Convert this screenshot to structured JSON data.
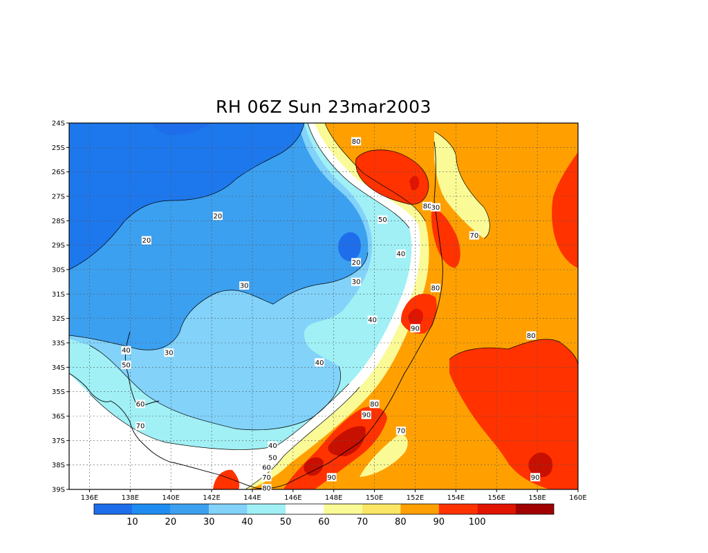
{
  "title": "RH 06Z Sun 23mar2003",
  "map": {
    "lat_labels": [
      "24S",
      "25S",
      "26S",
      "27S",
      "28S",
      "29S",
      "30S",
      "31S",
      "32S",
      "33S",
      "34S",
      "35S",
      "36S",
      "37S",
      "38S",
      "39S"
    ],
    "lon_labels": [
      "136E",
      "138E",
      "140E",
      "142E",
      "144E",
      "146E",
      "148E",
      "150E",
      "152E",
      "154E",
      "156E",
      "158E",
      "160E"
    ],
    "grid": "dotted",
    "contour_labels": [
      {
        "text": "80",
        "lon": 149.1,
        "lat": -24.75
      },
      {
        "text": "20",
        "lon": 142.3,
        "lat": -27.8
      },
      {
        "text": "20",
        "lon": 138.8,
        "lat": -28.8
      },
      {
        "text": "50",
        "lon": 150.4,
        "lat": -27.95
      },
      {
        "text": "80",
        "lon": 152.6,
        "lat": -27.4
      },
      {
        "text": "30",
        "lon": 153.0,
        "lat": -27.45
      },
      {
        "text": "70",
        "lon": 154.9,
        "lat": -28.6
      },
      {
        "text": "20",
        "lon": 149.1,
        "lat": -29.7
      },
      {
        "text": "40",
        "lon": 151.3,
        "lat": -29.35
      },
      {
        "text": "30",
        "lon": 149.1,
        "lat": -30.5
      },
      {
        "text": "30",
        "lon": 143.6,
        "lat": -30.65
      },
      {
        "text": "80",
        "lon": 153.0,
        "lat": -30.75
      },
      {
        "text": "40",
        "lon": 149.9,
        "lat": -32.05
      },
      {
        "text": "90",
        "lon": 152.0,
        "lat": -32.4
      },
      {
        "text": "80",
        "lon": 157.7,
        "lat": -32.7
      },
      {
        "text": "40",
        "lon": 137.8,
        "lat": -33.3
      },
      {
        "text": "30",
        "lon": 139.9,
        "lat": -33.4
      },
      {
        "text": "50",
        "lon": 137.8,
        "lat": -33.9
      },
      {
        "text": "40",
        "lon": 147.3,
        "lat": -33.8
      },
      {
        "text": "60",
        "lon": 138.5,
        "lat": -35.5
      },
      {
        "text": "80",
        "lon": 150.0,
        "lat": -35.5
      },
      {
        "text": "90",
        "lon": 149.6,
        "lat": -35.95
      },
      {
        "text": "70",
        "lon": 138.5,
        "lat": -36.4
      },
      {
        "text": "70",
        "lon": 151.3,
        "lat": -36.6
      },
      {
        "text": "40",
        "lon": 145.0,
        "lat": -37.2
      },
      {
        "text": "50",
        "lon": 145.0,
        "lat": -37.7
      },
      {
        "text": "60",
        "lon": 144.7,
        "lat": -38.1
      },
      {
        "text": "70",
        "lon": 144.7,
        "lat": -38.5
      },
      {
        "text": "80",
        "lon": 144.7,
        "lat": -38.95
      },
      {
        "text": "90",
        "lon": 147.9,
        "lat": -38.5
      },
      {
        "text": "90",
        "lon": 157.9,
        "lat": -38.5
      }
    ]
  },
  "colorbar": {
    "colors": [
      "#1e6eeb",
      "#1e8cf0",
      "#3ca0f0",
      "#82d2fa",
      "#a0f0f5",
      "#ffffff",
      "#fafa96",
      "#fae664",
      "#ffa000",
      "#ff3200",
      "#e11400",
      "#a00000"
    ],
    "labels": [
      "10",
      "20",
      "30",
      "40",
      "50",
      "60",
      "70",
      "80",
      "90",
      "100"
    ]
  },
  "colors": {
    "rh_below_20": "#1e6eeb",
    "rh_20_30": "#3ca0f0",
    "rh_30_40": "#82d2fa",
    "rh_40_50": "#a0f0f5",
    "rh_50_60": "#ffffff",
    "rh_60_70": "#fafa96",
    "rh_70_80": "#ffa000",
    "rh_80_90": "#ff3200",
    "rh_above_90": "#c81000"
  }
}
